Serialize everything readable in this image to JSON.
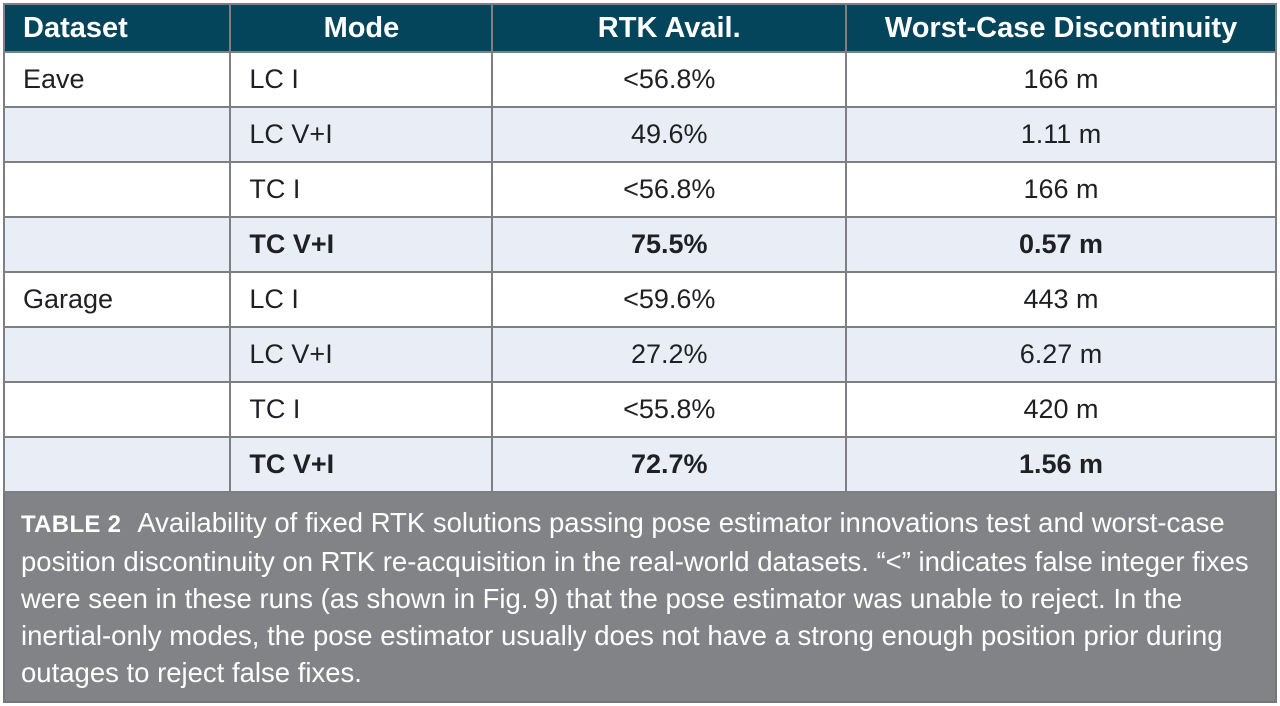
{
  "table": {
    "columns": [
      {
        "key": "dataset",
        "label": "Dataset",
        "header_align": "left",
        "cell_align": "left"
      },
      {
        "key": "mode",
        "label": "Mode",
        "header_align": "center",
        "cell_align": "left"
      },
      {
        "key": "rtk",
        "label": "RTK Avail.",
        "header_align": "center",
        "cell_align": "center"
      },
      {
        "key": "disc",
        "label": "Worst-Case Discontinuity",
        "header_align": "center",
        "cell_align": "center"
      }
    ],
    "rows": [
      {
        "dataset": "Eave",
        "mode": "LC I",
        "rtk": "<56.8%",
        "disc": "166 m",
        "bold": false
      },
      {
        "dataset": "",
        "mode": "LC V+I",
        "rtk": "49.6%",
        "disc": "1.11 m",
        "bold": false
      },
      {
        "dataset": "",
        "mode": "TC I",
        "rtk": "<56.8%",
        "disc": "166 m",
        "bold": false
      },
      {
        "dataset": "",
        "mode": "TC V+I",
        "rtk": "75.5%",
        "disc": "0.57 m",
        "bold": true
      },
      {
        "dataset": "Garage",
        "mode": "LC I",
        "rtk": "<59.6%",
        "disc": "443 m",
        "bold": false
      },
      {
        "dataset": "",
        "mode": "LC V+I",
        "rtk": "27.2%",
        "disc": "6.27 m",
        "bold": false
      },
      {
        "dataset": "",
        "mode": "TC I",
        "rtk": "<55.8%",
        "disc": "420 m",
        "bold": false
      },
      {
        "dataset": "",
        "mode": "TC V+I",
        "rtk": "72.7%",
        "disc": "1.56 m",
        "bold": true
      }
    ]
  },
  "caption": {
    "label": "TABLE 2",
    "text": "Availability of fixed RTK solutions passing pose estimator innovations test and worst-case position discontinuity on RTK re-acquisition in the real-world datasets. “<” indicates false integer fixes were seen in these runs (as shown in Fig. 9) that the pose estimator was unable to reject. In the inertial-only modes, the pose estimator usually does not have a strong enough position prior during outages to reject false fixes."
  },
  "chart_data": {
    "type": "table",
    "title": "TABLE 2",
    "categories": [
      "Dataset",
      "Mode",
      "RTK Avail.",
      "Worst-Case Discontinuity"
    ],
    "series": [
      {
        "name": "Eave LC I",
        "values": [
          "Eave",
          "LC I",
          "<56.8%",
          "166 m"
        ]
      },
      {
        "name": "Eave LC V+I",
        "values": [
          "",
          "LC V+I",
          "49.6%",
          "1.11 m"
        ]
      },
      {
        "name": "Eave TC I",
        "values": [
          "",
          "TC I",
          "<56.8%",
          "166 m"
        ]
      },
      {
        "name": "Eave TC V+I",
        "values": [
          "",
          "TC V+I",
          "75.5%",
          "0.57 m"
        ]
      },
      {
        "name": "Garage LC I",
        "values": [
          "Garage",
          "LC I",
          "<59.6%",
          "443 m"
        ]
      },
      {
        "name": "Garage LC V+I",
        "values": [
          "",
          "LC V+I",
          "27.2%",
          "6.27 m"
        ]
      },
      {
        "name": "Garage TC I",
        "values": [
          "",
          "TC I",
          "<55.8%",
          "420 m"
        ]
      },
      {
        "name": "Garage TC V+I",
        "values": [
          "",
          "TC V+I",
          "72.7%",
          "1.56 m"
        ]
      }
    ]
  },
  "colors": {
    "header_bg": "#05455b",
    "header_text": "#ffffff",
    "row_bg": "#ffffff",
    "row_alt_bg": "#e9edf5",
    "border": "#7d7f82",
    "caption_bg": "#818386",
    "caption_text": "#ffffff",
    "body_text": "#1f2023"
  }
}
